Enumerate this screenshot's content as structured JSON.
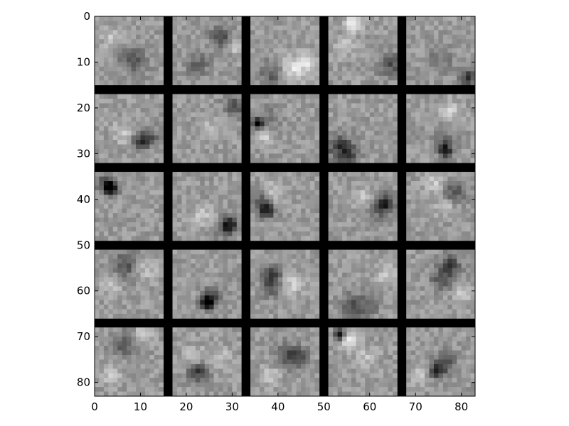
{
  "chart_data": {
    "type": "heatmap",
    "title": "",
    "xlabel": "",
    "ylabel": "",
    "colormap": "gray",
    "grid": false,
    "image_size": [
      83,
      83
    ],
    "xlim": [
      0,
      83
    ],
    "ylim": [
      83,
      0
    ],
    "x_ticks": [
      {
        "value": 0,
        "label": "0"
      },
      {
        "value": 10,
        "label": "10"
      },
      {
        "value": 20,
        "label": "20"
      },
      {
        "value": 30,
        "label": "30"
      },
      {
        "value": 40,
        "label": "40"
      },
      {
        "value": 50,
        "label": "50"
      },
      {
        "value": 60,
        "label": "60"
      },
      {
        "value": 70,
        "label": "70"
      },
      {
        "value": 80,
        "label": "80"
      }
    ],
    "y_ticks": [
      {
        "value": 0,
        "label": "0"
      },
      {
        "value": 10,
        "label": "10"
      },
      {
        "value": 20,
        "label": "20"
      },
      {
        "value": 30,
        "label": "30"
      },
      {
        "value": 40,
        "label": "40"
      },
      {
        "value": 50,
        "label": "50"
      },
      {
        "value": 60,
        "label": "60"
      },
      {
        "value": 70,
        "label": "70"
      },
      {
        "value": 80,
        "label": "80"
      }
    ],
    "tile_grid": {
      "rows": 5,
      "cols": 5,
      "tile_size": 15,
      "separator": 2,
      "separator_color": "#000000",
      "background_gray": "#9a9a9a"
    },
    "tiles": [
      {
        "row": 0,
        "col": 0,
        "features": [
          [
            8,
            9,
            2.0,
            -0.35
          ],
          [
            3,
            4,
            1.5,
            0.2
          ]
        ]
      },
      {
        "row": 0,
        "col": 1,
        "features": [
          [
            10,
            4,
            1.6,
            -0.4
          ],
          [
            5,
            10,
            1.8,
            -0.25
          ],
          [
            13,
            6,
            1.0,
            0.3
          ]
        ]
      },
      {
        "row": 0,
        "col": 2,
        "features": [
          [
            9,
            11,
            2.0,
            0.35
          ],
          [
            4,
            12,
            2.0,
            -0.3
          ],
          [
            12,
            9,
            1.2,
            0.3
          ]
        ]
      },
      {
        "row": 0,
        "col": 3,
        "features": [
          [
            5,
            1,
            1.2,
            0.5
          ],
          [
            13,
            10,
            1.8,
            -0.35
          ],
          [
            3,
            6,
            1.5,
            0.2
          ]
        ]
      },
      {
        "row": 0,
        "col": 4,
        "features": [
          [
            13,
            13,
            1.3,
            -0.5
          ],
          [
            7,
            9,
            2.0,
            -0.2
          ]
        ]
      },
      {
        "row": 1,
        "col": 0,
        "features": [
          [
            11,
            9,
            1.5,
            -0.45
          ],
          [
            9,
            10,
            1.2,
            -0.35
          ],
          [
            6,
            8,
            1.8,
            0.2
          ]
        ]
      },
      {
        "row": 1,
        "col": 1,
        "features": [
          [
            13,
            2,
            1.5,
            -0.4
          ],
          [
            8,
            7,
            1.8,
            0.15
          ]
        ]
      },
      {
        "row": 1,
        "col": 2,
        "features": [
          [
            1,
            6,
            0.7,
            -0.9
          ],
          [
            3,
            5,
            1.8,
            -0.2
          ],
          [
            3,
            9,
            1.0,
            0.3
          ]
        ]
      },
      {
        "row": 1,
        "col": 3,
        "features": [
          [
            2,
            11,
            2.0,
            -0.45
          ],
          [
            4,
            13,
            1.5,
            -0.3
          ]
        ]
      },
      {
        "row": 1,
        "col": 4,
        "features": [
          [
            8,
            12,
            1.0,
            -0.6
          ],
          [
            8,
            10,
            1.6,
            -0.3
          ],
          [
            9,
            3,
            1.5,
            0.25
          ]
        ]
      },
      {
        "row": 2,
        "col": 0,
        "features": [
          [
            3,
            3,
            1.0,
            -0.8
          ],
          [
            2,
            2,
            1.5,
            -0.4
          ]
        ]
      },
      {
        "row": 2,
        "col": 1,
        "features": [
          [
            12,
            11,
            1.2,
            -0.5
          ],
          [
            11,
            12,
            1.5,
            -0.3
          ],
          [
            6,
            9,
            1.6,
            0.2
          ]
        ]
      },
      {
        "row": 2,
        "col": 2,
        "features": [
          [
            3,
            8,
            1.2,
            -0.6
          ],
          [
            2,
            6,
            1.5,
            -0.3
          ],
          [
            5,
            4,
            1.5,
            0.25
          ]
        ]
      },
      {
        "row": 2,
        "col": 3,
        "features": [
          [
            12,
            6,
            1.2,
            -0.55
          ],
          [
            11,
            8,
            1.5,
            -0.3
          ],
          [
            7,
            5,
            1.5,
            0.2
          ]
        ]
      },
      {
        "row": 2,
        "col": 4,
        "features": [
          [
            10,
            4,
            1.6,
            -0.35
          ],
          [
            6,
            2,
            1.5,
            0.25
          ],
          [
            8,
            7,
            1.5,
            0.2
          ]
        ]
      },
      {
        "row": 3,
        "col": 0,
        "features": [
          [
            6,
            3,
            2.0,
            -0.35
          ],
          [
            3,
            7,
            1.5,
            0.25
          ],
          [
            11,
            4,
            1.5,
            0.2
          ]
        ]
      },
      {
        "row": 3,
        "col": 1,
        "features": [
          [
            7,
            11,
            1.0,
            -0.8
          ],
          [
            8,
            10,
            1.5,
            -0.4
          ]
        ]
      },
      {
        "row": 3,
        "col": 2,
        "features": [
          [
            4,
            5,
            1.4,
            -0.5
          ],
          [
            4,
            8,
            1.4,
            -0.3
          ],
          [
            9,
            7,
            1.5,
            0.25
          ]
        ]
      },
      {
        "row": 3,
        "col": 3,
        "features": [
          [
            5,
            12,
            2.0,
            -0.35
          ],
          [
            9,
            11,
            1.5,
            -0.25
          ],
          [
            12,
            5,
            1.5,
            0.2
          ]
        ]
      },
      {
        "row": 3,
        "col": 4,
        "features": [
          [
            9,
            3,
            1.5,
            -0.45
          ],
          [
            7,
            6,
            1.6,
            -0.35
          ],
          [
            12,
            9,
            1.4,
            0.25
          ]
        ]
      },
      {
        "row": 4,
        "col": 0,
        "features": [
          [
            6,
            3,
            2.0,
            -0.3
          ],
          [
            10,
            1,
            1.2,
            0.35
          ],
          [
            3,
            10,
            1.5,
            0.2
          ]
        ]
      },
      {
        "row": 4,
        "col": 1,
        "features": [
          [
            5,
            9,
            1.5,
            -0.5
          ],
          [
            4,
            6,
            1.6,
            0.25
          ],
          [
            10,
            6,
            1.5,
            0.2
          ]
        ]
      },
      {
        "row": 4,
        "col": 2,
        "features": [
          [
            8,
            6,
            2.0,
            -0.35
          ],
          [
            10,
            6,
            1.4,
            -0.25
          ],
          [
            4,
            10,
            1.5,
            0.2
          ]
        ]
      },
      {
        "row": 4,
        "col": 3,
        "features": [
          [
            2,
            1,
            0.8,
            -0.9
          ],
          [
            4,
            2,
            1.5,
            0.35
          ],
          [
            8,
            6,
            1.5,
            0.2
          ]
        ]
      },
      {
        "row": 4,
        "col": 4,
        "features": [
          [
            6,
            9,
            1.2,
            -0.6
          ],
          [
            8,
            7,
            1.6,
            -0.35
          ],
          [
            3,
            10,
            1.5,
            0.2
          ]
        ]
      }
    ]
  }
}
